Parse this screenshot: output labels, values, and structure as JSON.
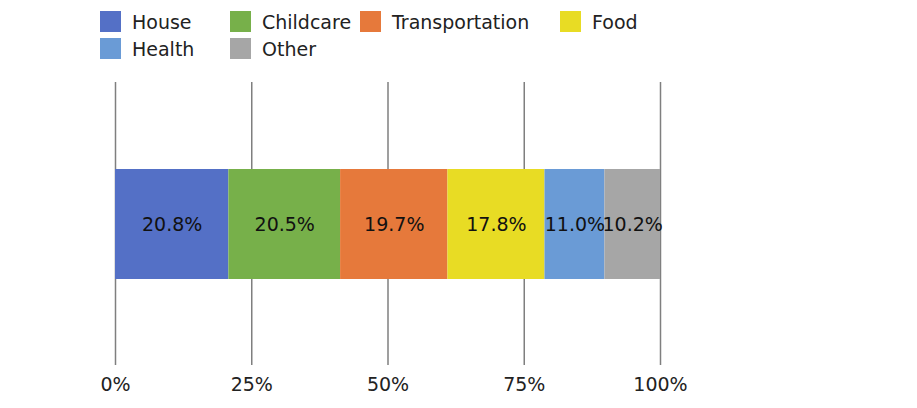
{
  "chart_data": {
    "type": "bar",
    "orientation": "horizontal",
    "stacked": true,
    "categories": [
      null
    ],
    "series": [
      {
        "name": "House",
        "color": "#5470c6",
        "values": [
          20.8
        ],
        "value_labels": [
          "20.8%"
        ]
      },
      {
        "name": "Childcare",
        "color": "#77b04a",
        "values": [
          20.5
        ],
        "value_labels": [
          "20.5%"
        ]
      },
      {
        "name": "Transportation",
        "color": "#e6793b",
        "values": [
          19.7
        ],
        "value_labels": [
          "19.7%"
        ]
      },
      {
        "name": "Food",
        "color": "#e8dc24",
        "values": [
          17.8
        ],
        "value_labels": [
          "17.8%"
        ]
      },
      {
        "name": "Health",
        "color": "#6a9bd6",
        "values": [
          11.0
        ],
        "value_labels": [
          "11.0%"
        ]
      },
      {
        "name": "Other",
        "color": "#a6a6a6",
        "values": [
          10.2
        ],
        "value_labels": [
          "10.2%"
        ]
      }
    ],
    "xlim": [
      0,
      100
    ],
    "xticks": [
      {
        "value": 0,
        "label": "0%"
      },
      {
        "value": 25,
        "label": "25%"
      },
      {
        "value": 50,
        "label": "50%"
      },
      {
        "value": 75,
        "label": "75%"
      },
      {
        "value": 100,
        "label": "100%"
      }
    ],
    "grid": true,
    "data_labels": true,
    "legend": "top",
    "tick_labels": "x"
  }
}
